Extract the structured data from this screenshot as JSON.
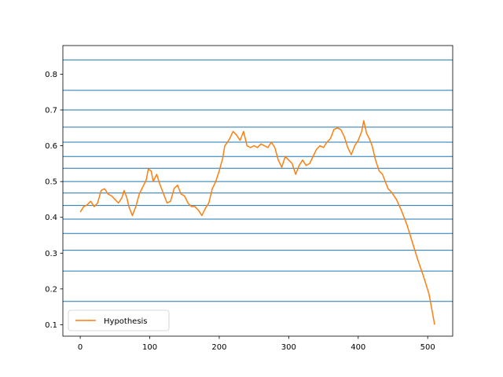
{
  "chart_data": {
    "type": "line",
    "title": "",
    "xlabel": "",
    "ylabel": "",
    "xlim": [
      -25,
      536
    ],
    "ylim": [
      0.068,
      0.88
    ],
    "x_ticks": [
      0,
      100,
      200,
      300,
      400,
      500
    ],
    "y_ticks": [
      0.1,
      0.2,
      0.3,
      0.4,
      0.5,
      0.6,
      0.7,
      0.8
    ],
    "grid": false,
    "legend_position": "lower left",
    "horizontal_lines": {
      "color": "#1f77b4",
      "values": [
        0.84,
        0.755,
        0.7,
        0.652,
        0.61,
        0.57,
        0.537,
        0.5,
        0.468,
        0.433,
        0.395,
        0.355,
        0.308,
        0.25,
        0.165
      ]
    },
    "series": [
      {
        "name": "Hypothesis",
        "color": "#ff7f0e",
        "points": [
          [
            0,
            0.415
          ],
          [
            5,
            0.43
          ],
          [
            10,
            0.435
          ],
          [
            15,
            0.445
          ],
          [
            20,
            0.43
          ],
          [
            25,
            0.44
          ],
          [
            30,
            0.475
          ],
          [
            35,
            0.48
          ],
          [
            40,
            0.465
          ],
          [
            45,
            0.46
          ],
          [
            50,
            0.45
          ],
          [
            55,
            0.44
          ],
          [
            60,
            0.455
          ],
          [
            63,
            0.475
          ],
          [
            67,
            0.455
          ],
          [
            70,
            0.43
          ],
          [
            75,
            0.405
          ],
          [
            80,
            0.43
          ],
          [
            85,
            0.465
          ],
          [
            90,
            0.485
          ],
          [
            95,
            0.505
          ],
          [
            98,
            0.535
          ],
          [
            102,
            0.53
          ],
          [
            105,
            0.5
          ],
          [
            110,
            0.52
          ],
          [
            115,
            0.49
          ],
          [
            120,
            0.465
          ],
          [
            125,
            0.44
          ],
          [
            130,
            0.445
          ],
          [
            135,
            0.48
          ],
          [
            140,
            0.49
          ],
          [
            145,
            0.465
          ],
          [
            150,
            0.46
          ],
          [
            155,
            0.44
          ],
          [
            160,
            0.43
          ],
          [
            165,
            0.43
          ],
          [
            170,
            0.42
          ],
          [
            175,
            0.405
          ],
          [
            180,
            0.425
          ],
          [
            185,
            0.44
          ],
          [
            190,
            0.48
          ],
          [
            195,
            0.5
          ],
          [
            200,
            0.53
          ],
          [
            205,
            0.565
          ],
          [
            208,
            0.6
          ],
          [
            212,
            0.61
          ],
          [
            215,
            0.62
          ],
          [
            220,
            0.64
          ],
          [
            225,
            0.63
          ],
          [
            230,
            0.615
          ],
          [
            235,
            0.64
          ],
          [
            240,
            0.6
          ],
          [
            245,
            0.595
          ],
          [
            250,
            0.6
          ],
          [
            255,
            0.595
          ],
          [
            260,
            0.605
          ],
          [
            265,
            0.6
          ],
          [
            270,
            0.595
          ],
          [
            275,
            0.61
          ],
          [
            280,
            0.595
          ],
          [
            285,
            0.56
          ],
          [
            290,
            0.54
          ],
          [
            295,
            0.57
          ],
          [
            300,
            0.56
          ],
          [
            305,
            0.55
          ],
          [
            310,
            0.52
          ],
          [
            315,
            0.545
          ],
          [
            320,
            0.56
          ],
          [
            325,
            0.545
          ],
          [
            330,
            0.55
          ],
          [
            335,
            0.57
          ],
          [
            340,
            0.59
          ],
          [
            345,
            0.6
          ],
          [
            350,
            0.595
          ],
          [
            355,
            0.61
          ],
          [
            360,
            0.62
          ],
          [
            365,
            0.645
          ],
          [
            370,
            0.65
          ],
          [
            375,
            0.645
          ],
          [
            380,
            0.625
          ],
          [
            385,
            0.595
          ],
          [
            390,
            0.575
          ],
          [
            395,
            0.6
          ],
          [
            400,
            0.615
          ],
          [
            405,
            0.64
          ],
          [
            408,
            0.67
          ],
          [
            412,
            0.635
          ],
          [
            416,
            0.62
          ],
          [
            420,
            0.6
          ],
          [
            425,
            0.56
          ],
          [
            430,
            0.53
          ],
          [
            435,
            0.52
          ],
          [
            440,
            0.495
          ],
          [
            443,
            0.48
          ],
          [
            448,
            0.47
          ],
          [
            455,
            0.45
          ],
          [
            462,
            0.42
          ],
          [
            470,
            0.38
          ],
          [
            478,
            0.33
          ],
          [
            486,
            0.28
          ],
          [
            494,
            0.235
          ],
          [
            502,
            0.185
          ],
          [
            510,
            0.1
          ]
        ]
      }
    ]
  }
}
